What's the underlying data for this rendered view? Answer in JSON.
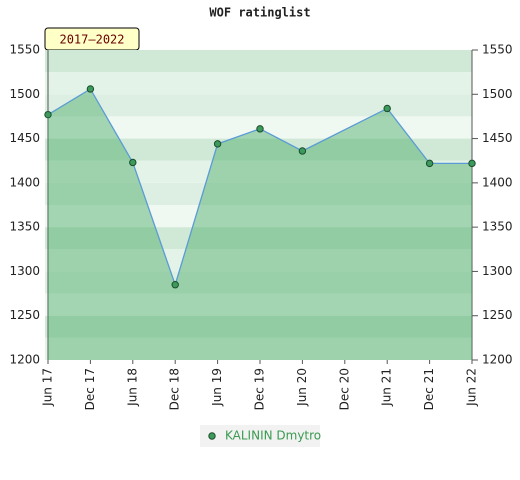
{
  "chart_data": {
    "type": "line",
    "title": "WOF ratinglist",
    "annotation": "2017–2022",
    "xlim": [
      0,
      10
    ],
    "xticks": [
      {
        "value": 0,
        "label": "Jun 17"
      },
      {
        "value": 1,
        "label": "Dec 17"
      },
      {
        "value": 2,
        "label": "Jun 18"
      },
      {
        "value": 3,
        "label": "Dec 18"
      },
      {
        "value": 4,
        "label": "Jun 19"
      },
      {
        "value": 5,
        "label": "Dec 19"
      },
      {
        "value": 6,
        "label": "Jun 20"
      },
      {
        "value": 7,
        "label": "Dec 20"
      },
      {
        "value": 8,
        "label": "Jun 21"
      },
      {
        "value": 9,
        "label": "Dec 21"
      },
      {
        "value": 10,
        "label": "Jun 22"
      }
    ],
    "ylim": [
      1200,
      1550
    ],
    "yticks": [
      1200,
      1250,
      1300,
      1350,
      1400,
      1450,
      1500,
      1550
    ],
    "series": [
      {
        "name": "KALININ Dmytro",
        "color": "#5b9bd5",
        "marker_color": "#3c9a5c",
        "x": [
          0,
          1,
          2,
          3,
          4,
          5,
          6,
          8,
          9,
          10
        ],
        "values": [
          1477,
          1506,
          1423,
          1285,
          1444,
          1461,
          1436,
          1484,
          1422,
          1422
        ]
      }
    ]
  }
}
